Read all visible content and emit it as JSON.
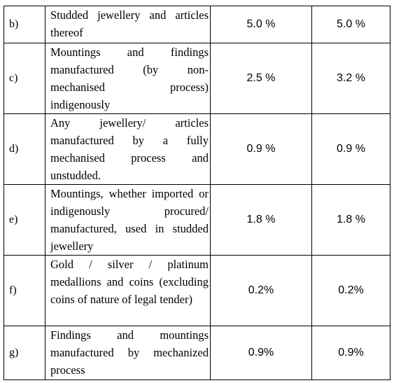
{
  "table": {
    "rows": [
      {
        "label": "b)",
        "description": "Studded jewellery and articles thereof",
        "rate_1": "5.0 %",
        "rate_2": "5.0 %"
      },
      {
        "label": "c)",
        "description": "Mountings and findings manufactured (by non-mechanised process) indigenously",
        "rate_1": "2.5 %",
        "rate_2": "3.2 %"
      },
      {
        "label": "d)",
        "description": "Any jewellery/ articles manufactured by a fully mechanised process and unstudded.",
        "rate_1": "0.9 %",
        "rate_2": "0.9 %"
      },
      {
        "label": "e)",
        "description": "Mountings, whether imported or indigenously procured/ manufactured, used in studded jewellery",
        "rate_1": "1.8 %",
        "rate_2": "1.8 %"
      },
      {
        "label": "f)",
        "description": "Gold / silver / platinum medallions and coins (excluding coins of nature of legal tender)",
        "rate_1": "0.2%",
        "rate_2": "0.2%"
      },
      {
        "label": "g)",
        "description": "Findings and mountings manufactured by mechanized process",
        "rate_1": "0.9%",
        "rate_2": "0.9%"
      }
    ]
  }
}
